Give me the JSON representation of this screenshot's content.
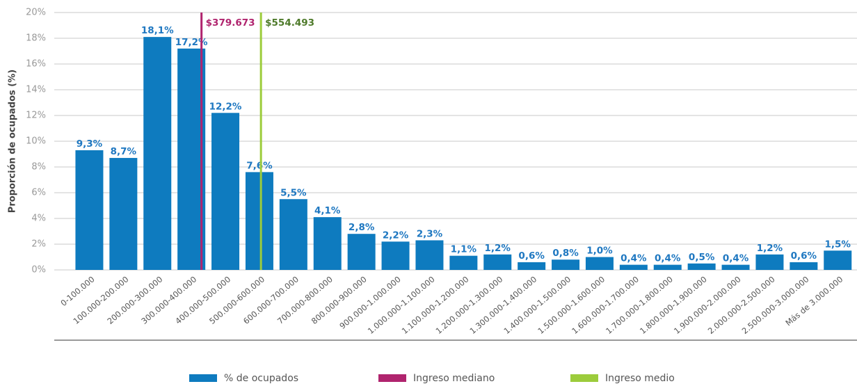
{
  "chart_data": {
    "type": "bar",
    "y_label": "Proporción de ocupados (%)",
    "categories": [
      "0-100.000",
      "100.000-200.000",
      "200.000-300.000",
      "300.000-400.000",
      "400.000-500.000",
      "500.000-600.000",
      "600.000-700.000",
      "700.000-800.000",
      "800.000-900.000",
      "900.000-1.000.000",
      "1.000.000-1.100.000",
      "1.100.000-1.200.000",
      "1.200.000-1.300.000",
      "1.300.000-1.400.000",
      "1.400.000-1.500.000",
      "1.500.000-1.600.000",
      "1.600.000-1.700.000",
      "1.700.000-1.800.000",
      "1.800.000-1.900.000",
      "1.900.000-2.000.000",
      "2.000.000-2.500.000",
      "2.500.000-3.000.000",
      "Más de 3.000.000"
    ],
    "series": [
      {
        "name": "% de ocupados",
        "color": "#0e7bbf",
        "label_color": "#1f78c1",
        "values": [
          9.3,
          8.7,
          18.1,
          17.2,
          12.2,
          7.6,
          5.5,
          4.1,
          2.8,
          2.2,
          2.3,
          1.1,
          1.2,
          0.6,
          0.8,
          1.0,
          0.4,
          0.4,
          0.5,
          0.4,
          1.2,
          0.6,
          1.5
        ],
        "value_labels": [
          "9,3%",
          "8,7%",
          "18,1%",
          "17,2%",
          "12,2%",
          "7,6%",
          "5,5%",
          "4,1%",
          "2,8%",
          "2,2%",
          "2,3%",
          "1,1%",
          "1,2%",
          "0,6%",
          "0,8%",
          "1,0%",
          "0,4%",
          "0,4%",
          "0,5%",
          "0,4%",
          "1,2%",
          "0,6%",
          "1,5%"
        ]
      }
    ],
    "category_width": 100000,
    "reference_lines": [
      {
        "name": "Ingreso mediano",
        "value": 379673,
        "label": "$379.673",
        "color": "#b0246e",
        "label_color": "#b0246e"
      },
      {
        "name": "Ingreso medio",
        "value": 554493,
        "label": "$554.493",
        "color": "#9ccc3c",
        "label_color": "#4e7a2a"
      }
    ],
    "ylim": [
      0,
      20
    ],
    "yticks": [
      {
        "value": 0,
        "label": "0%"
      },
      {
        "value": 2,
        "label": "2%"
      },
      {
        "value": 4,
        "label": "4%"
      },
      {
        "value": 6,
        "label": "6%"
      },
      {
        "value": 8,
        "label": "8%"
      },
      {
        "value": 10,
        "label": "10%"
      },
      {
        "value": 12,
        "label": "12%"
      },
      {
        "value": 14,
        "label": "14%"
      },
      {
        "value": 16,
        "label": "16%"
      },
      {
        "value": 18,
        "label": "18%"
      },
      {
        "value": 20,
        "label": "20%"
      }
    ],
    "grid": true
  }
}
